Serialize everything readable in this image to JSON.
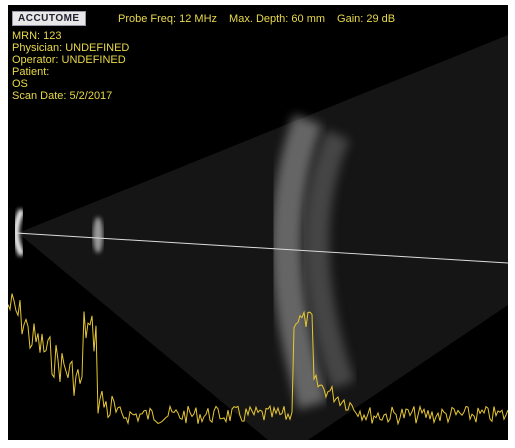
{
  "header": {
    "logo": "ACCUTOME",
    "items": [
      "Probe Freq: 12 MHz",
      "Max. Depth: 60 mm",
      "Gain: 29 dB"
    ]
  },
  "patient_info": [
    "MRN: 123",
    "Physician: UNDEFINED",
    "Operator: UNDEFINED",
    "Patient:",
    "OS",
    "Scan Date: 5/2/2017"
  ]
}
